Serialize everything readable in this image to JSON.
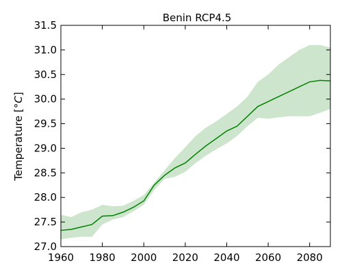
{
  "chart_data": {
    "type": "line",
    "title": "Benin  RCP4.5",
    "xlabel": "",
    "ylabel": "Temperature [",
    "ylabel_unit": "°C",
    "ylabel_close": "]",
    "xlim": [
      1960,
      2090
    ],
    "ylim": [
      27.0,
      31.5
    ],
    "xticks": [
      1960,
      1980,
      2000,
      2020,
      2040,
      2060,
      2080
    ],
    "xtick_labels": [
      "1960",
      "1980",
      "2000",
      "2020",
      "2040",
      "2060",
      "2080"
    ],
    "yticks": [
      27.0,
      27.5,
      28.0,
      28.5,
      29.0,
      29.5,
      30.0,
      30.5,
      31.0,
      31.5
    ],
    "ytick_labels": [
      "27.0",
      "27.5",
      "28.0",
      "28.5",
      "29.0",
      "29.5",
      "30.0",
      "30.5",
      "31.0",
      "31.5"
    ],
    "grid": false,
    "legend": false,
    "colors": {
      "line": "#008000",
      "band": "#cce5cc"
    },
    "series": [
      {
        "x": [
          1960,
          1965,
          1970,
          1975,
          1980,
          1985,
          1990,
          1995,
          2000,
          2005,
          2010,
          2015,
          2020,
          2025,
          2030,
          2035,
          2040,
          2045,
          2050,
          2055,
          2060,
          2065,
          2070,
          2075,
          2080,
          2085,
          2090
        ],
        "mean": [
          27.33,
          27.35,
          27.4,
          27.45,
          27.62,
          27.63,
          27.7,
          27.8,
          27.93,
          28.25,
          28.45,
          28.6,
          28.7,
          28.88,
          29.05,
          29.2,
          29.35,
          29.45,
          29.65,
          29.85,
          29.95,
          30.05,
          30.15,
          30.25,
          30.35,
          30.38,
          30.37
        ],
        "lower": [
          27.15,
          27.18,
          27.2,
          27.2,
          27.45,
          27.55,
          27.6,
          27.72,
          27.85,
          28.15,
          28.38,
          28.42,
          28.52,
          28.7,
          28.85,
          28.98,
          29.1,
          29.25,
          29.45,
          29.62,
          29.6,
          29.63,
          29.65,
          29.65,
          29.65,
          29.72,
          29.8
        ],
        "upper": [
          27.65,
          27.6,
          27.7,
          27.75,
          27.85,
          27.82,
          27.83,
          27.93,
          28.05,
          28.3,
          28.55,
          28.8,
          29.02,
          29.25,
          29.42,
          29.55,
          29.7,
          29.85,
          30.05,
          30.35,
          30.5,
          30.7,
          30.85,
          31.0,
          31.1,
          31.1,
          31.05
        ]
      }
    ]
  }
}
